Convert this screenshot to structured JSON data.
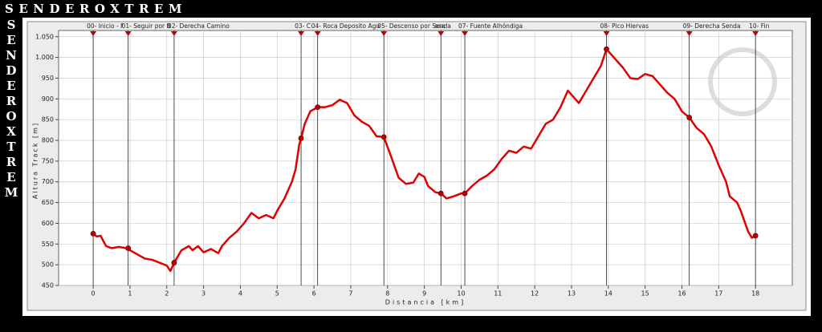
{
  "chart_data": {
    "type": "line",
    "title": "SENDEROXTREM",
    "x_label": "Distancia [km]",
    "y_label": "Altura Track [m]",
    "xlim": [
      -0.94,
      19.0
    ],
    "ylim": [
      450,
      1065
    ],
    "xticks": [
      0,
      1,
      2,
      3,
      4,
      5,
      6,
      7,
      8,
      9,
      10,
      11,
      12,
      13,
      14,
      15,
      16,
      17,
      18
    ],
    "yticks": [
      450,
      500,
      550,
      600,
      650,
      700,
      750,
      800,
      850,
      900,
      950,
      {
        "value": 1000,
        "label": "1.000"
      },
      {
        "value": 1050,
        "label": "1.050"
      }
    ],
    "grid": true,
    "series": [
      {
        "name": "Altura Track",
        "color": "#e00000",
        "x": [
          0,
          0.1,
          0.2,
          0.35,
          0.5,
          0.7,
          0.9,
          1.0,
          1.2,
          1.4,
          1.6,
          1.8,
          2.0,
          2.1,
          2.2,
          2.3,
          2.4,
          2.6,
          2.7,
          2.85,
          3.0,
          3.2,
          3.4,
          3.5,
          3.7,
          3.9,
          4.1,
          4.3,
          4.5,
          4.7,
          4.9,
          5.0,
          5.2,
          5.4,
          5.5,
          5.6,
          5.65,
          5.75,
          5.9,
          6.1,
          6.3,
          6.5,
          6.7,
          6.9,
          7.1,
          7.3,
          7.5,
          7.7,
          7.9,
          8.1,
          8.3,
          8.5,
          8.7,
          8.85,
          9.0,
          9.1,
          9.3,
          9.45,
          9.6,
          9.8,
          10.0,
          10.1,
          10.3,
          10.5,
          10.7,
          10.9,
          11.1,
          11.3,
          11.5,
          11.7,
          11.9,
          12.1,
          12.3,
          12.5,
          12.7,
          12.9,
          13.1,
          13.2,
          13.5,
          13.8,
          13.95,
          14.2,
          14.4,
          14.6,
          14.8,
          15.0,
          15.2,
          15.4,
          15.6,
          15.8,
          16.0,
          16.2,
          16.4,
          16.6,
          16.8,
          17.0,
          17.2,
          17.3,
          17.5,
          17.6,
          17.8,
          17.9,
          18.0
        ],
        "values": [
          575,
          568,
          570,
          545,
          540,
          543,
          540,
          535,
          525,
          515,
          512,
          505,
          498,
          485,
          505,
          520,
          535,
          545,
          535,
          545,
          530,
          538,
          528,
          545,
          565,
          580,
          600,
          625,
          612,
          620,
          612,
          630,
          660,
          700,
          730,
          790,
          805,
          840,
          870,
          880,
          880,
          885,
          898,
          890,
          860,
          845,
          835,
          810,
          808,
          760,
          710,
          695,
          698,
          720,
          712,
          690,
          675,
          672,
          660,
          665,
          672,
          672,
          690,
          705,
          715,
          730,
          755,
          775,
          770,
          785,
          780,
          810,
          840,
          850,
          880,
          920,
          900,
          890,
          935,
          980,
          1020,
          995,
          975,
          950,
          948,
          960,
          955,
          935,
          915,
          900,
          870,
          855,
          830,
          815,
          785,
          740,
          700,
          665,
          650,
          630,
          580,
          565,
          570
        ]
      }
    ],
    "waypoints": {
      "color": "#c00000",
      "labels": [
        "00- Inicio - F",
        "01- Seguir por B",
        "02- Derecha Camino",
        "03- C",
        "04- Roca Deposito Agu",
        "05- Descenso por Senda",
        "asa",
        "07- Fuente Alhóndiga",
        "08- Pico Hiervas",
        "09- Derecha Senda",
        "10- Fin"
      ],
      "x": [
        0,
        0.95,
        2.2,
        5.65,
        6.1,
        7.9,
        9.45,
        10.1,
        13.95,
        16.2,
        18.0
      ],
      "values": [
        575,
        540,
        505,
        805,
        880,
        808,
        672,
        672,
        1020,
        855,
        570
      ]
    }
  }
}
